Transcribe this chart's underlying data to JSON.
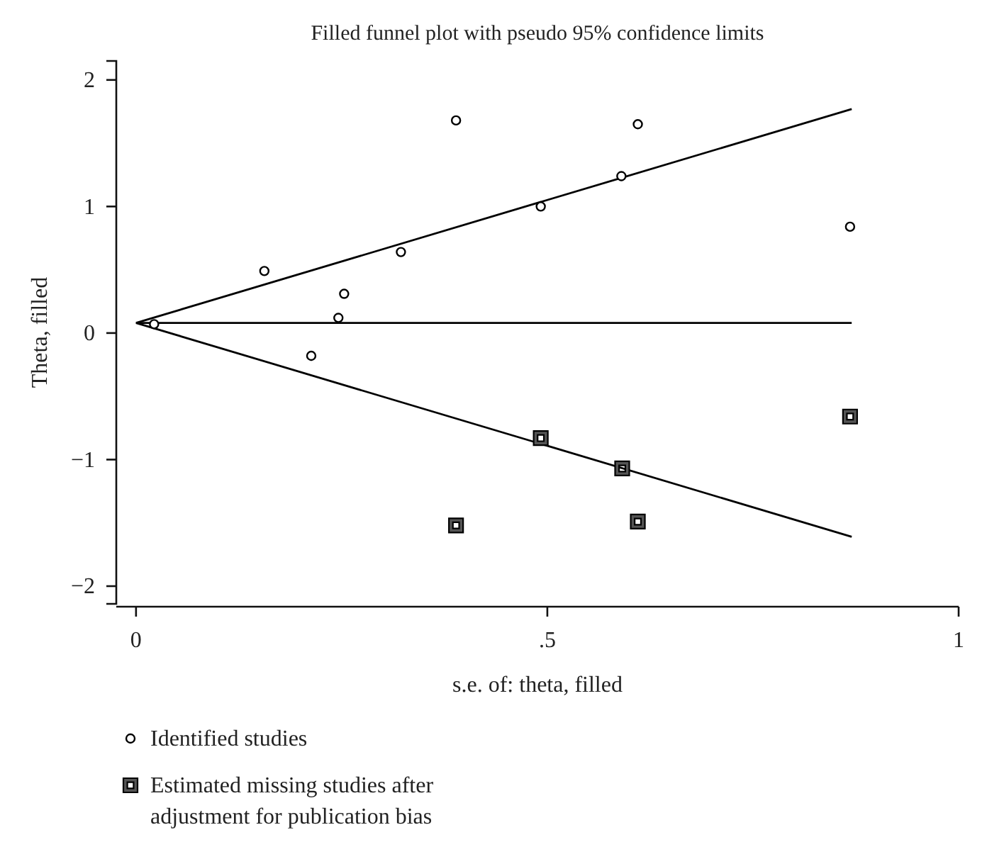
{
  "chart_data": {
    "type": "scatter",
    "title": "Filled funnel plot with pseudo 95% confidence limits",
    "xlabel": "s.e. of: theta, filled",
    "ylabel": "Theta, filled",
    "xlim": [
      -0.024,
      1.0
    ],
    "ylim": [
      -2.14,
      2.15
    ],
    "xticks": [
      0,
      {
        "value": 0.5,
        "label": ".5"
      },
      1
    ],
    "yticks": [
      {
        "value": -2,
        "label": "−2"
      },
      {
        "value": -1,
        "label": "−1"
      },
      0,
      1,
      2
    ],
    "legend": "bottom",
    "series": [
      {
        "type": "line",
        "color": "#000000",
        "x": [
          0,
          0.87
        ],
        "values": [
          0.08,
          1.77
        ]
      },
      {
        "type": "line",
        "color": "#000000",
        "x": [
          0,
          0.87
        ],
        "values": [
          0.08,
          0.08
        ]
      },
      {
        "type": "line",
        "color": "#000000",
        "x": [
          0,
          0.87
        ],
        "values": [
          0.08,
          -1.61
        ]
      },
      {
        "name": "Identified studies",
        "marker": "circle",
        "color": "#000000",
        "x": [
          0.022,
          0.156,
          0.213,
          0.246,
          0.253,
          0.322,
          0.389,
          0.492,
          0.59,
          0.61,
          0.868
        ],
        "values": [
          0.07,
          0.49,
          -0.18,
          0.12,
          0.31,
          0.64,
          1.68,
          1.0,
          1.24,
          1.65,
          0.84
        ]
      },
      {
        "name": "Estimated missing studies after adjustment for publication bias",
        "marker": "square",
        "color": "#000000",
        "x": [
          0.389,
          0.492,
          0.591,
          0.61,
          0.868
        ],
        "values": [
          -1.52,
          -0.83,
          -1.07,
          -1.49,
          -0.66
        ]
      }
    ]
  }
}
